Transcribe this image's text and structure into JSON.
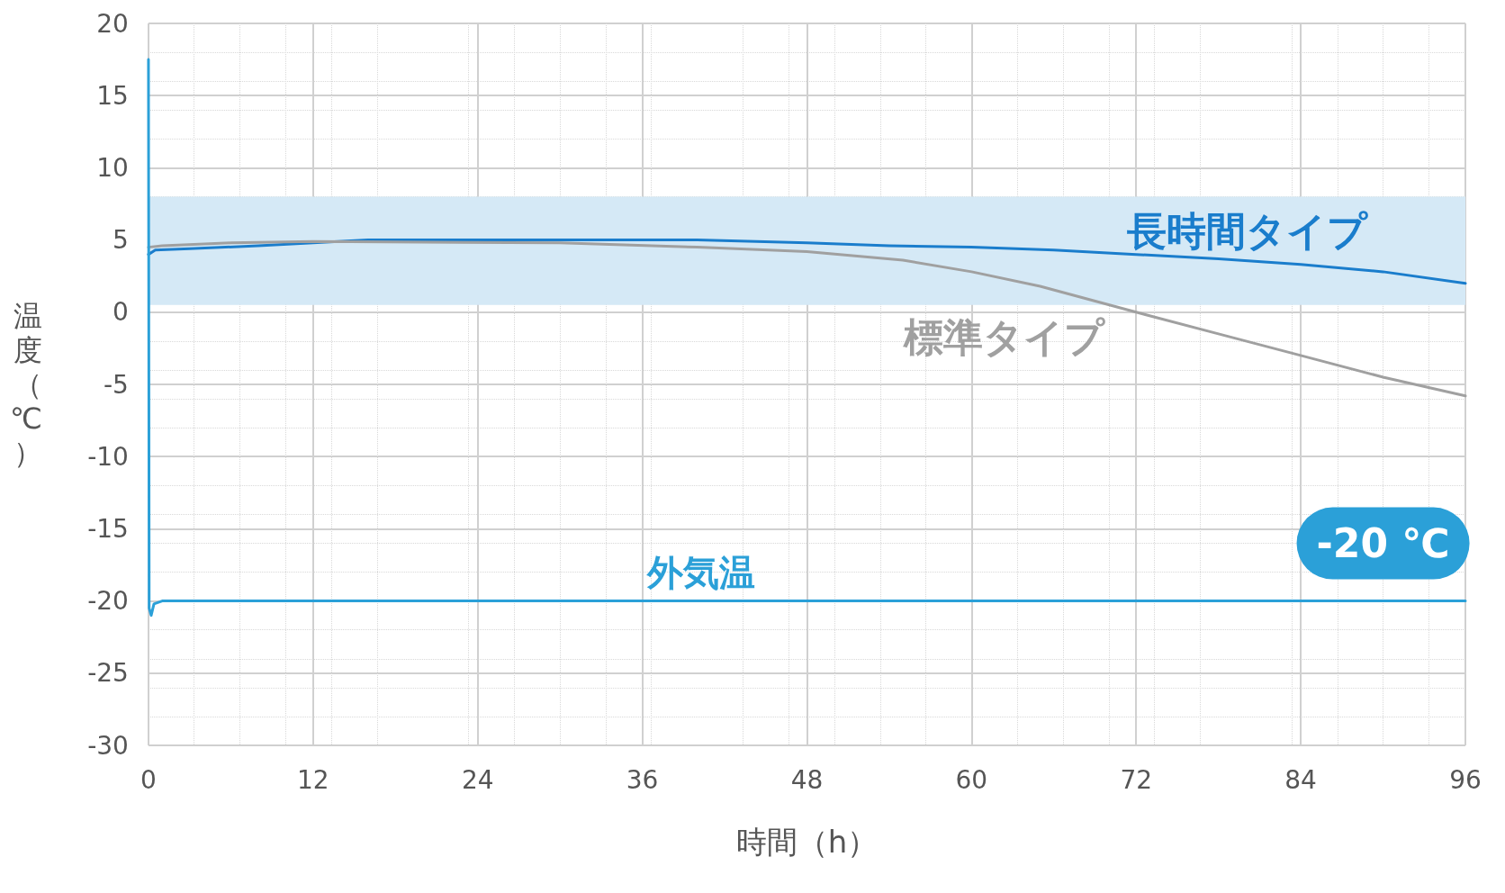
{
  "chart_data": {
    "type": "line",
    "xlabel": "時間（h）",
    "ylabel": "温度（℃）",
    "xlim": [
      0,
      96
    ],
    "xticks": [
      0,
      12,
      24,
      36,
      48,
      60,
      72,
      84,
      96
    ],
    "ylim": [
      -30,
      20
    ],
    "yticks": [
      -30,
      -25,
      -20,
      -15,
      -10,
      -5,
      0,
      5,
      10,
      15,
      20
    ],
    "grid": true,
    "legend": false,
    "marker": "none",
    "line_style": "solid",
    "bands": [
      {
        "axis": "y",
        "from": 0.5,
        "to": 8,
        "color": "#d5e9f6"
      }
    ],
    "annotations": [
      {
        "text": "-20 ℃",
        "x": 90,
        "y": -20
      }
    ],
    "series": [
      {
        "name": "長時間タイプ",
        "color": "#1a7dcc",
        "x": [
          0,
          0.5,
          3,
          8,
          12,
          16,
          40,
          48,
          54,
          60,
          66,
          72,
          78,
          84,
          90,
          96
        ],
        "values": [
          4,
          4.3,
          4.4,
          4.6,
          4.8,
          5,
          5,
          4.8,
          4.6,
          4.5,
          4.3,
          4,
          3.7,
          3.3,
          2.8,
          2
        ]
      },
      {
        "name": "標準タイプ",
        "color": "#a0a0a0",
        "x": [
          0,
          1,
          6,
          12,
          30,
          40,
          48,
          55,
          60,
          65,
          72,
          78,
          84,
          90,
          96
        ],
        "values": [
          4.5,
          4.6,
          4.8,
          4.9,
          4.8,
          4.5,
          4.2,
          3.6,
          2.8,
          1.8,
          0,
          -1.5,
          -3,
          -4.5,
          -5.8
        ]
      },
      {
        "name": "外気温",
        "color": "#2ba0d8",
        "x": [
          0,
          0.05,
          0.2,
          0.4,
          1,
          96
        ],
        "values": [
          17.5,
          -20.5,
          -21,
          -20.2,
          -20,
          -20
        ]
      }
    ]
  }
}
